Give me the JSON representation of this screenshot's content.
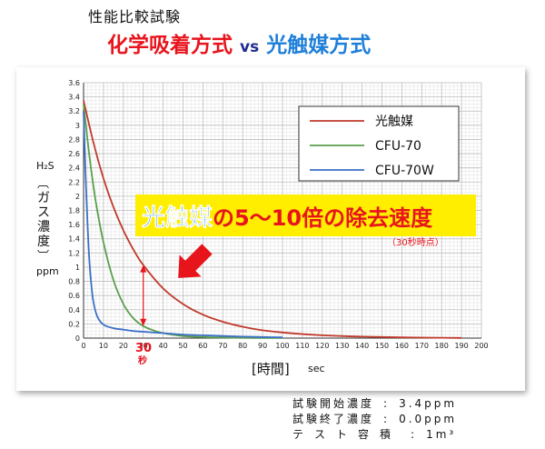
{
  "header": {
    "subtitle": "性能比較試験",
    "title_part1": "化学吸着方式",
    "title_vs": "vs",
    "title_part2": "光触媒方式"
  },
  "callout": {
    "text_part1": "光触媒",
    "text_part2": "の5～10倍の除去速度",
    "note": "（30秒時点）",
    "marker_value": "30",
    "marker_unit": "秒"
  },
  "conditions": [
    {
      "label": "試験開始濃度",
      "value": "3.4ppm"
    },
    {
      "label": "試験終了濃度",
      "value": "0.0ppm"
    },
    {
      "label": "テスト容積",
      "value": "1m³"
    }
  ],
  "colors": {
    "photocatalyst": "#c0392b",
    "cfu70": "#5a9e4b",
    "cfu70w": "#3a6fc7",
    "title_red": "#e8141c",
    "title_blue": "#1e7fd8",
    "callout_bg": "#ffee00",
    "arrow_red": "#e8141c"
  },
  "chart_data": {
    "type": "line",
    "ylabel_top": "H₂S",
    "ylabel_main": "[ガス濃度]",
    "ylabel_unit": "ppm",
    "xlabel": "[時間]",
    "xlabel_unit": "sec",
    "xlim": [
      0,
      200
    ],
    "ylim": [
      0,
      3.6
    ],
    "xticks": [
      0,
      10,
      20,
      30,
      40,
      50,
      60,
      70,
      80,
      90,
      100,
      110,
      120,
      130,
      140,
      150,
      160,
      170,
      180,
      190,
      200
    ],
    "yticks": [
      0,
      0.2,
      0.4,
      0.6,
      0.8,
      1,
      1.2,
      1.4,
      1.6,
      1.8,
      2,
      2.2,
      2.4,
      2.6,
      2.8,
      3,
      3.2,
      3.4,
      3.6
    ],
    "grid": true,
    "legend_position": "top-right",
    "series": [
      {
        "name": "光触媒",
        "color": "#c0392b",
        "x": [
          0,
          5,
          10,
          15,
          20,
          25,
          30,
          40,
          50,
          60,
          70,
          80,
          90,
          100,
          120,
          140,
          160,
          180,
          190
        ],
        "y": [
          3.35,
          2.75,
          2.25,
          1.85,
          1.52,
          1.25,
          1.03,
          0.7,
          0.48,
          0.33,
          0.23,
          0.16,
          0.11,
          0.08,
          0.04,
          0.02,
          0.01,
          0.005,
          0.003
        ]
      },
      {
        "name": "CFU-70",
        "color": "#5a9e4b",
        "x": [
          0,
          3,
          6,
          10,
          15,
          20,
          25,
          30,
          35,
          40,
          50,
          60,
          70,
          80,
          90,
          100
        ],
        "y": [
          3.3,
          2.55,
          1.95,
          1.35,
          0.82,
          0.48,
          0.28,
          0.17,
          0.11,
          0.07,
          0.03,
          0.015,
          0.008,
          0.004,
          0.002,
          0.001
        ]
      },
      {
        "name": "CFU-70W",
        "color": "#3a6fc7",
        "x": [
          0,
          1,
          2,
          3,
          4,
          5,
          7,
          10,
          15,
          20,
          25,
          30,
          40,
          50,
          60,
          70,
          80,
          90,
          100
        ],
        "y": [
          3.2,
          2.3,
          1.6,
          1.05,
          0.72,
          0.5,
          0.3,
          0.19,
          0.14,
          0.12,
          0.1,
          0.09,
          0.07,
          0.05,
          0.04,
          0.03,
          0.02,
          0.015,
          0.01
        ]
      }
    ]
  }
}
